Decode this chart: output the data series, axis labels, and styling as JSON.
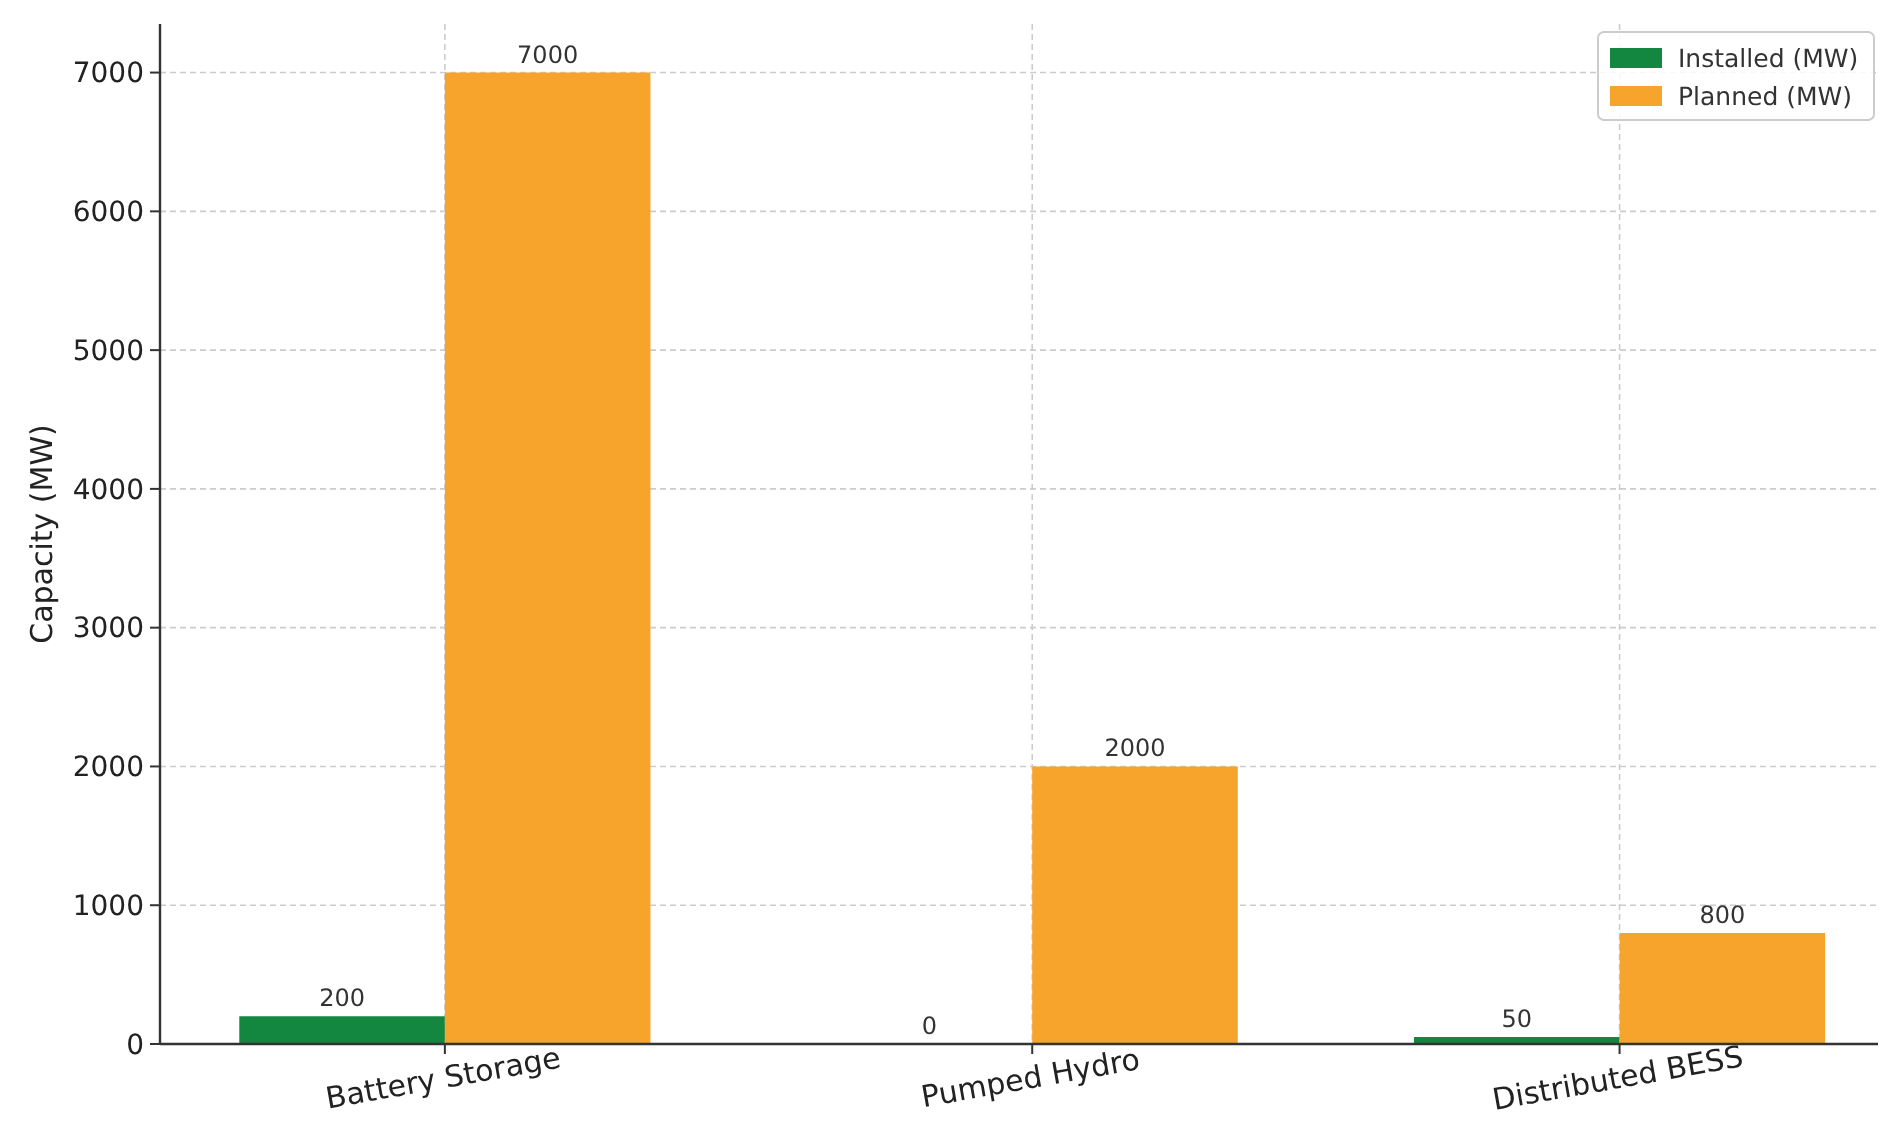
{
  "chart_data": {
    "type": "bar",
    "ylabel": "Capacity (MW)",
    "categories": [
      "Battery Storage",
      "Pumped Hydro",
      "Distributed BESS"
    ],
    "series": [
      {
        "name": "Installed (MW)",
        "color": "#13873f",
        "values": [
          200,
          0,
          50
        ]
      },
      {
        "name": "Planned (MW)",
        "color": "#f7a42c",
        "values": [
          7000,
          2000,
          800
        ]
      }
    ],
    "ylim": [
      0,
      7350
    ],
    "yticks": [
      0,
      1000,
      2000,
      3000,
      4000,
      5000,
      6000,
      7000
    ],
    "grid": true,
    "legend": "top right",
    "data_labels": true
  }
}
